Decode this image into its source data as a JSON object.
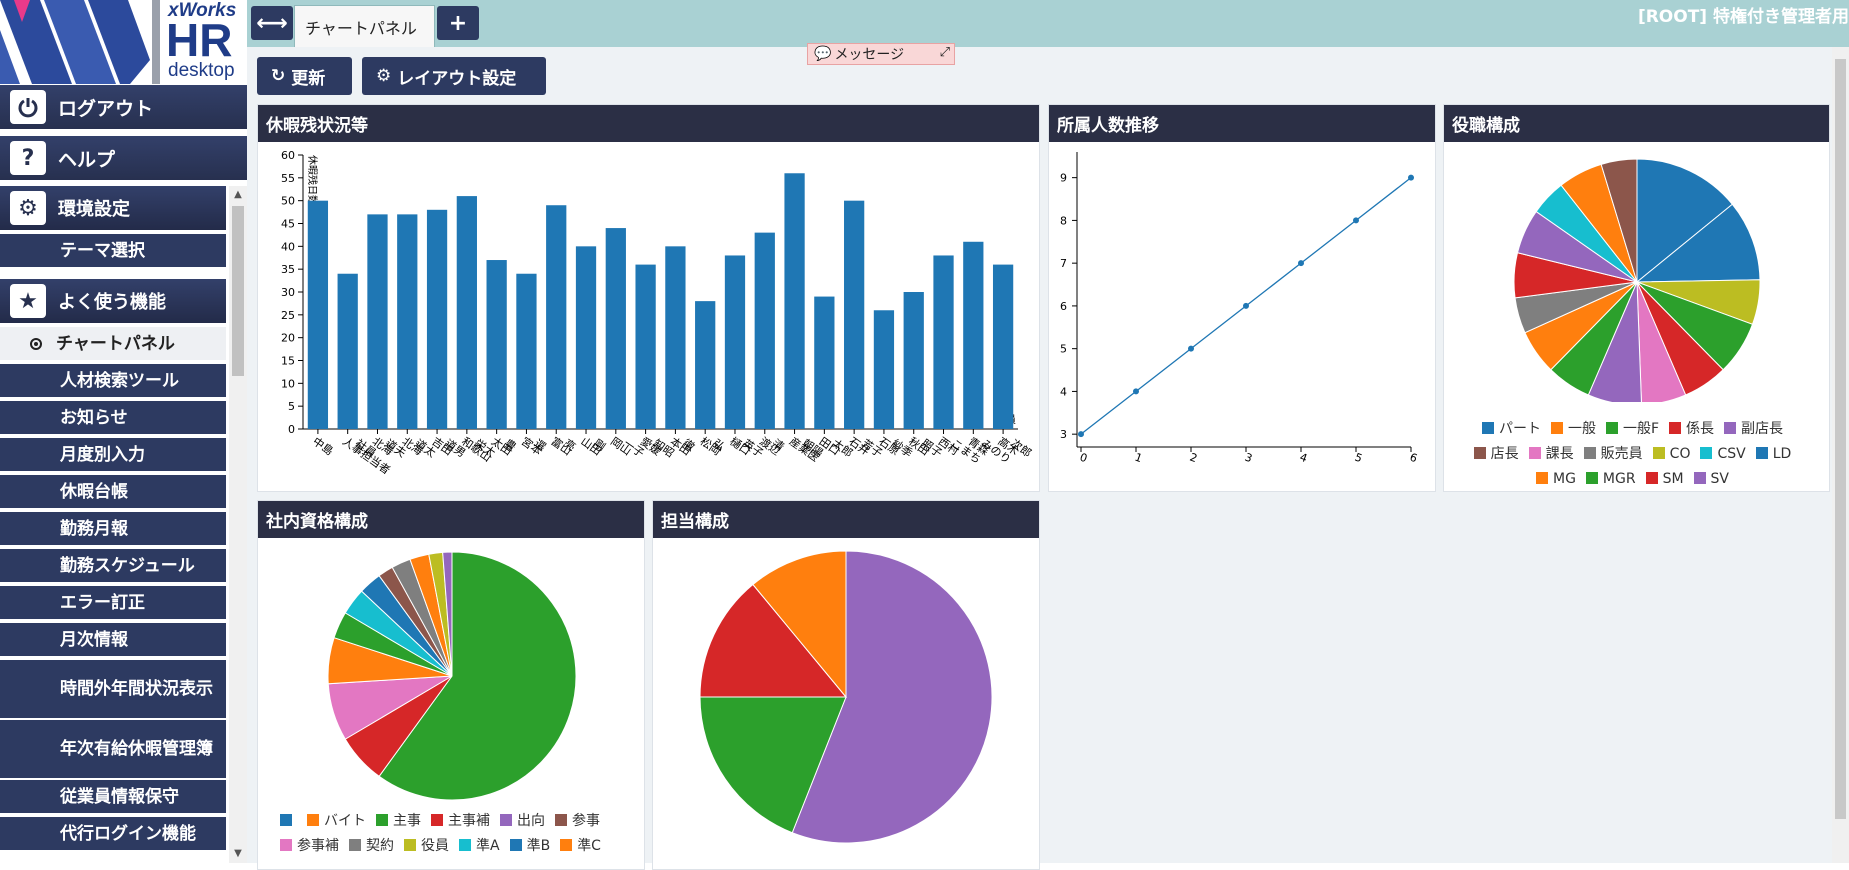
{
  "logo": {
    "brand_x": "xWorks",
    "brand_hr": "HR",
    "brand_desk": "desktop"
  },
  "sidebar": {
    "logout": "ログアウト",
    "help": "ヘルプ",
    "settings_section": "環境設定",
    "theme": "テーマ選択",
    "favorites_section": "よく使う機能",
    "items": [
      {
        "label": "チャートパネル",
        "active": true
      },
      {
        "label": "人材検索ツール"
      },
      {
        "label": "お知らせ"
      },
      {
        "label": "月度別入力"
      },
      {
        "label": "休暇台帳"
      },
      {
        "label": "勤務月報"
      },
      {
        "label": "勤務スケジュール"
      },
      {
        "label": "エラー訂正"
      },
      {
        "label": "月次情報"
      },
      {
        "label": "時間外年間状況表示"
      },
      {
        "label": "年次有給休暇管理簿"
      },
      {
        "label": "従業員情報保守"
      },
      {
        "label": "代行ログイン機能"
      }
    ]
  },
  "topbar": {
    "tab_label": "チャートパネル",
    "user": "[ROOT] 特権付き管理者用"
  },
  "toolbar": {
    "refresh": "更新",
    "layout": "レイアウト設定",
    "message": "メッセージ"
  },
  "panels": {
    "vacation": "休暇残状況等",
    "headcount": "所属人数推移",
    "position": "役職構成",
    "qualification": "社内資格構成",
    "charge": "担当構成"
  },
  "colors": [
    "#1f77b4",
    "#ff7f0e",
    "#2ca02c",
    "#d62728",
    "#9467bd",
    "#8c564b",
    "#e377c2",
    "#7f7f7f",
    "#bcbd22",
    "#17becf"
  ],
  "chart_data": [
    {
      "id": "vacation",
      "type": "bar",
      "ylabel": "休暇残日数",
      "xlabel": "社員",
      "ylim": [
        0,
        60
      ],
      "yticks": [
        0,
        5,
        10,
        15,
        20,
        25,
        30,
        35,
        40,
        45,
        50,
        55,
        60
      ],
      "categories": [
        [
          "中島"
        ],
        [
          "人事担当者",
          "社員"
        ],
        [
          "北海",
          "道夫"
        ],
        [
          "北海",
          "道太"
        ],
        [
          "吉田",
          "道男"
        ],
        [
          "和歌山",
          "栄太"
        ],
        [
          "太田",
          "豊"
        ],
        [
          "宮本",
          "選"
        ],
        [
          "富山",
          "亮"
        ],
        [
          "山田",
          "剛"
        ],
        [
          "岡山",
          "一子"
        ],
        [
          "愛媛",
          "知昭"
        ],
        [
          "本田",
          "徹"
        ],
        [
          "松岡",
          "弘"
        ],
        [
          "樋口",
          "英子"
        ],
        [
          "渡辺",
          "清"
        ],
        [
          "産業医",
          "朝陽"
        ],
        [
          "田口",
          "太郎"
        ],
        [
          "石井",
          "芳子"
        ],
        [
          "石原",
          "紗季"
        ],
        [
          "秋田",
          "照子"
        ],
        [
          "西村",
          "こまち"
        ],
        [
          "青森",
          "みのり"
        ],
        [
          "高木",
          "次郎"
        ]
      ],
      "values": [
        50,
        34,
        47,
        47,
        48,
        51,
        37,
        34,
        49,
        40,
        44,
        36,
        40,
        28,
        38,
        43,
        56,
        29,
        50,
        26,
        30,
        38,
        41,
        36
      ]
    },
    {
      "id": "headcount",
      "type": "line",
      "x": [
        0,
        1,
        2,
        3,
        4,
        5,
        6
      ],
      "y": [
        3,
        4,
        5,
        6,
        7,
        8,
        9
      ],
      "xlim": [
        0,
        6
      ],
      "ylim": [
        2.7,
        9.6
      ],
      "yticks": [
        3,
        4,
        5,
        6,
        7,
        8,
        9
      ]
    },
    {
      "id": "position",
      "type": "pie",
      "labels": [
        "パート",
        "一般",
        "一般F",
        "係長",
        "副店長",
        "店長",
        "課長",
        "販売員",
        "CO",
        "CSV",
        "LD",
        "MG",
        "MGR",
        "SM",
        "SV"
      ],
      "values": [
        3,
        1,
        2,
        2,
        2,
        1,
        2,
        1,
        2,
        2,
        2,
        1,
        1,
        2,
        1
      ],
      "slice_order": [
        10,
        10,
        8,
        2,
        3,
        6,
        4,
        2,
        11,
        7,
        3,
        4,
        9,
        1,
        5
      ],
      "legend_rows": [
        [
          0,
          1,
          2,
          3,
          4
        ],
        [
          5,
          6,
          7,
          8,
          9,
          10
        ],
        [
          11,
          12,
          13,
          14
        ]
      ]
    },
    {
      "id": "qualification",
      "type": "pie",
      "labels": [
        "",
        "バイト",
        "主事",
        "主事補",
        "出向",
        "参事",
        "参事補",
        "契約",
        "役員",
        "準A",
        "準B",
        "準C"
      ],
      "values": [
        1,
        1,
        60,
        1,
        1,
        1,
        1,
        1,
        1,
        1,
        1,
        1
      ],
      "slices": [
        {
          "cat": 2,
          "value": 60.0
        },
        {
          "cat": 3,
          "value": 6.5
        },
        {
          "cat": 6,
          "value": 7.5
        },
        {
          "cat": 1,
          "value": 6.0
        },
        {
          "cat": 2,
          "value": 3.5
        },
        {
          "cat": 9,
          "value": 3.5
        },
        {
          "cat": 0,
          "value": 3.0
        },
        {
          "cat": 5,
          "value": 2.0
        },
        {
          "cat": 7,
          "value": 2.5
        },
        {
          "cat": 1,
          "value": 2.5
        },
        {
          "cat": 8,
          "value": 1.8
        },
        {
          "cat": 4,
          "value": 1.2
        }
      ],
      "legend_rows": [
        [
          0,
          1,
          2,
          3,
          4,
          5
        ],
        [
          6,
          7,
          8,
          9,
          10,
          11
        ]
      ]
    },
    {
      "id": "charge",
      "type": "pie",
      "slices": [
        {
          "color": "#9467bd",
          "value": 56
        },
        {
          "color": "#2ca02c",
          "value": 19
        },
        {
          "color": "#d62728",
          "value": 14
        },
        {
          "color": "#ff7f0e",
          "value": 11
        }
      ]
    }
  ]
}
